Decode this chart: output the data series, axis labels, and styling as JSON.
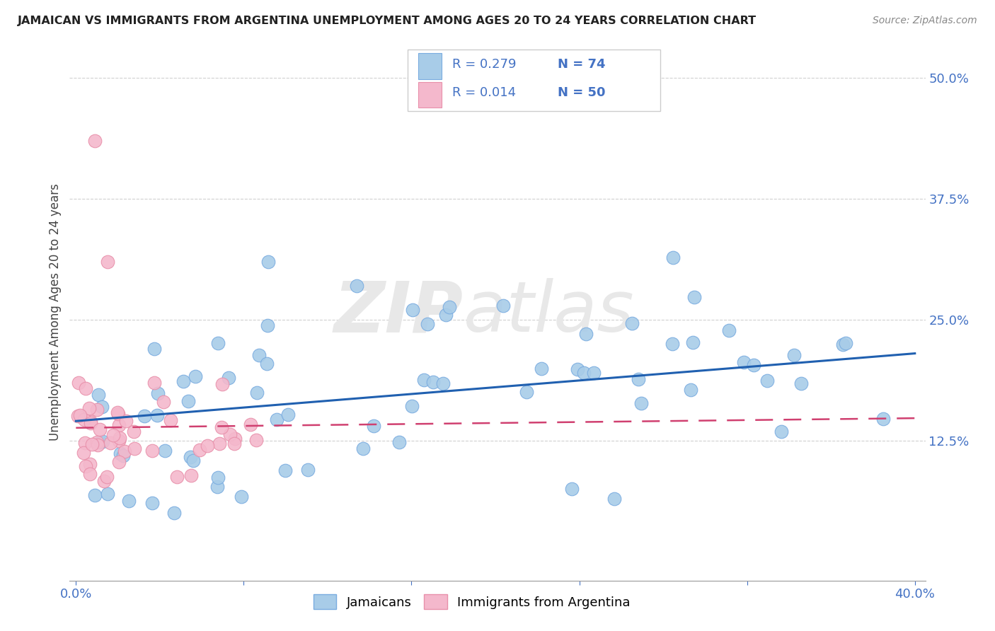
{
  "title": "JAMAICAN VS IMMIGRANTS FROM ARGENTINA UNEMPLOYMENT AMONG AGES 20 TO 24 YEARS CORRELATION CHART",
  "source": "Source: ZipAtlas.com",
  "ylabel": "Unemployment Among Ages 20 to 24 years",
  "right_yticks": [
    "50.0%",
    "37.5%",
    "25.0%",
    "12.5%"
  ],
  "right_ytick_vals": [
    0.5,
    0.375,
    0.25,
    0.125
  ],
  "xlim": [
    -0.003,
    0.405
  ],
  "ylim": [
    -0.02,
    0.535
  ],
  "blue_color": "#a8cce8",
  "pink_color": "#f4b8cc",
  "blue_edge": "#7aace0",
  "pink_edge": "#e890aa",
  "line_blue": "#2060b0",
  "line_pink": "#d04070",
  "watermark_color": "#e8e8e8",
  "legend_edge": "#cccccc",
  "grid_color": "#d0d0d0",
  "axis_color": "#999999",
  "tick_color": "#4472c4",
  "title_color": "#222222",
  "source_color": "#888888",
  "ylabel_color": "#444444",
  "blue_line_start_y": 0.145,
  "blue_line_end_y": 0.215,
  "pink_line_start_y": 0.138,
  "pink_line_end_y": 0.148
}
